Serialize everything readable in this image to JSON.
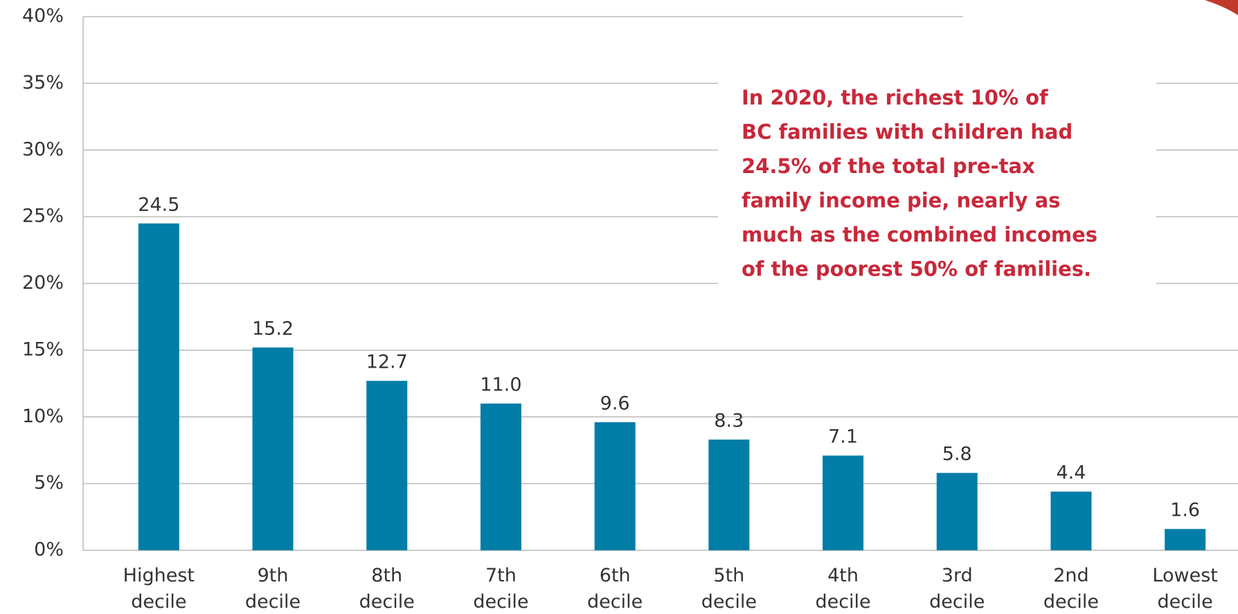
{
  "chart_data": {
    "type": "bar",
    "categories": [
      "Highest decile",
      "9th decile",
      "8th decile",
      "7th decile",
      "6th decile",
      "5th decile",
      "4th decile",
      "3rd decile",
      "2nd decile",
      "Lowest decile"
    ],
    "values": [
      24.5,
      15.2,
      12.7,
      11.0,
      9.6,
      8.3,
      7.1,
      5.8,
      4.4,
      1.6
    ],
    "value_labels": [
      "24.5",
      "15.2",
      "12.7",
      "11.0",
      "9.6",
      "8.3",
      "7.1",
      "5.8",
      "4.4",
      "1.6"
    ],
    "color": "#007ea7",
    "ylim": [
      0,
      40
    ],
    "yticks": [
      {
        "value": 0,
        "label": "0%"
      },
      {
        "value": 5,
        "label": "5%"
      },
      {
        "value": 10,
        "label": "10%"
      },
      {
        "value": 15,
        "label": "15%"
      },
      {
        "value": 20,
        "label": "20%"
      },
      {
        "value": 25,
        "label": "25%"
      },
      {
        "value": 30,
        "label": "30%"
      },
      {
        "value": 35,
        "label": "35%"
      },
      {
        "value": 40,
        "label": "40%"
      }
    ],
    "grid": true,
    "annotation": [
      "In 2020, the richest 10% of",
      "BC families with children had",
      "24.5% of the total pre-tax",
      "family income pie, nearly as",
      "much as the combined incomes",
      "of the poorest 50% of families."
    ]
  }
}
